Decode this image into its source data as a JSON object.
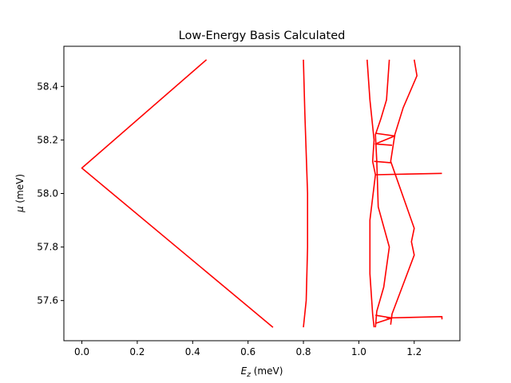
{
  "chart_data": {
    "type": "line",
    "title": "Low-Energy Basis Calculated",
    "xlabel_var": "E",
    "xlabel_sub": "z",
    "xlabel_unit": " (meV)",
    "ylabel_var": "μ",
    "ylabel_unit": " (meV)",
    "xlim": [
      -0.065,
      1.365
    ],
    "ylim": [
      57.45,
      58.55
    ],
    "xticks": [
      0.0,
      0.2,
      0.4,
      0.6,
      0.8,
      1.0,
      1.2
    ],
    "xtick_labels": [
      "0.0",
      "0.2",
      "0.4",
      "0.6",
      "0.8",
      "1.0",
      "1.2"
    ],
    "yticks": [
      57.6,
      57.8,
      58.0,
      58.2,
      58.4
    ],
    "ytick_labels": [
      "57.6",
      "57.8",
      "58.0",
      "58.2",
      "58.4"
    ],
    "grid": false,
    "legend": "none",
    "color": "#ff0000",
    "series": [
      {
        "points": [
          [
            0.45,
            58.5
          ],
          [
            0.0,
            58.095
          ],
          [
            0.69,
            57.5
          ]
        ]
      },
      {
        "points": [
          [
            0.8,
            58.5
          ],
          [
            0.805,
            58.3
          ],
          [
            0.815,
            58.0
          ],
          [
            0.815,
            57.8
          ],
          [
            0.81,
            57.6
          ],
          [
            0.8,
            57.5
          ]
        ]
      },
      {
        "points": [
          [
            1.03,
            58.5
          ],
          [
            1.04,
            58.35
          ],
          [
            1.055,
            58.2
          ],
          [
            1.05,
            58.12
          ],
          [
            1.06,
            58.07
          ],
          [
            1.04,
            57.9
          ],
          [
            1.04,
            57.7
          ],
          [
            1.05,
            57.55
          ],
          [
            1.055,
            57.5
          ]
        ]
      },
      {
        "points": [
          [
            1.11,
            58.5
          ],
          [
            1.1,
            58.35
          ],
          [
            1.08,
            58.28
          ],
          [
            1.06,
            58.22
          ],
          [
            1.065,
            58.12
          ],
          [
            1.07,
            57.95
          ],
          [
            1.11,
            57.8
          ],
          [
            1.09,
            57.65
          ],
          [
            1.065,
            57.56
          ],
          [
            1.06,
            57.5
          ]
        ]
      },
      {
        "points": [
          [
            1.2,
            58.5
          ],
          [
            1.21,
            58.44
          ],
          [
            1.16,
            58.32
          ],
          [
            1.13,
            58.22
          ],
          [
            1.115,
            58.12
          ],
          [
            1.2,
            57.87
          ],
          [
            1.19,
            57.82
          ],
          [
            1.2,
            57.77
          ],
          [
            1.12,
            57.55
          ],
          [
            1.115,
            57.51
          ]
        ]
      },
      {
        "points": [
          [
            1.06,
            58.225
          ],
          [
            1.13,
            58.215
          ],
          [
            1.06,
            58.185
          ],
          [
            1.12,
            58.18
          ]
        ]
      },
      {
        "points": [
          [
            1.055,
            58.12
          ],
          [
            1.115,
            58.115
          ]
        ]
      },
      {
        "points": [
          [
            1.06,
            58.07
          ],
          [
            1.3,
            58.075
          ]
        ]
      },
      {
        "points": [
          [
            1.06,
            57.545
          ],
          [
            1.12,
            57.535
          ],
          [
            1.06,
            57.515
          ]
        ]
      },
      {
        "points": [
          [
            1.1,
            57.535
          ],
          [
            1.3,
            57.54
          ],
          [
            1.3,
            57.53
          ]
        ]
      }
    ]
  }
}
